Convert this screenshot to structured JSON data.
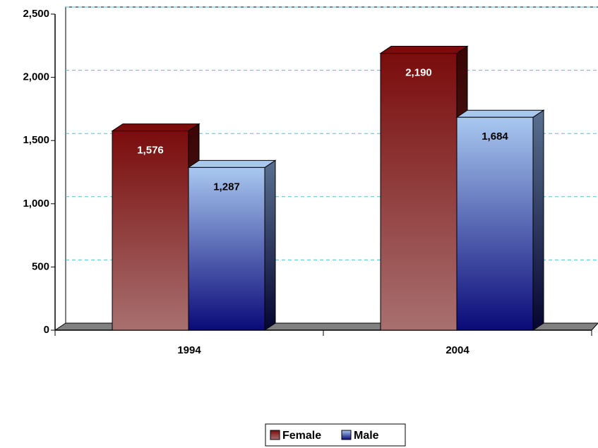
{
  "chart_data": {
    "type": "bar3d",
    "categories": [
      "1994",
      "2004"
    ],
    "series": [
      {
        "name": "Female",
        "color": "#7a0c0c",
        "values": [
          1576,
          2190
        ],
        "value_labels": [
          "1,576",
          "2,190"
        ]
      },
      {
        "name": "Male",
        "color": "#a8c8f0",
        "values": [
          1287,
          1684
        ],
        "value_labels": [
          "1,287",
          "1,684"
        ]
      }
    ],
    "ylim": [
      0,
      2500
    ],
    "yticks": [
      0,
      500,
      {
        "value": 1000,
        "label": "1,000"
      },
      {
        "value": 1500,
        "label": "1,500"
      },
      {
        "value": 2000,
        "label": "2,000"
      },
      {
        "value": 2500,
        "label": "2,500"
      }
    ],
    "grid": true,
    "legend": "bottom"
  }
}
